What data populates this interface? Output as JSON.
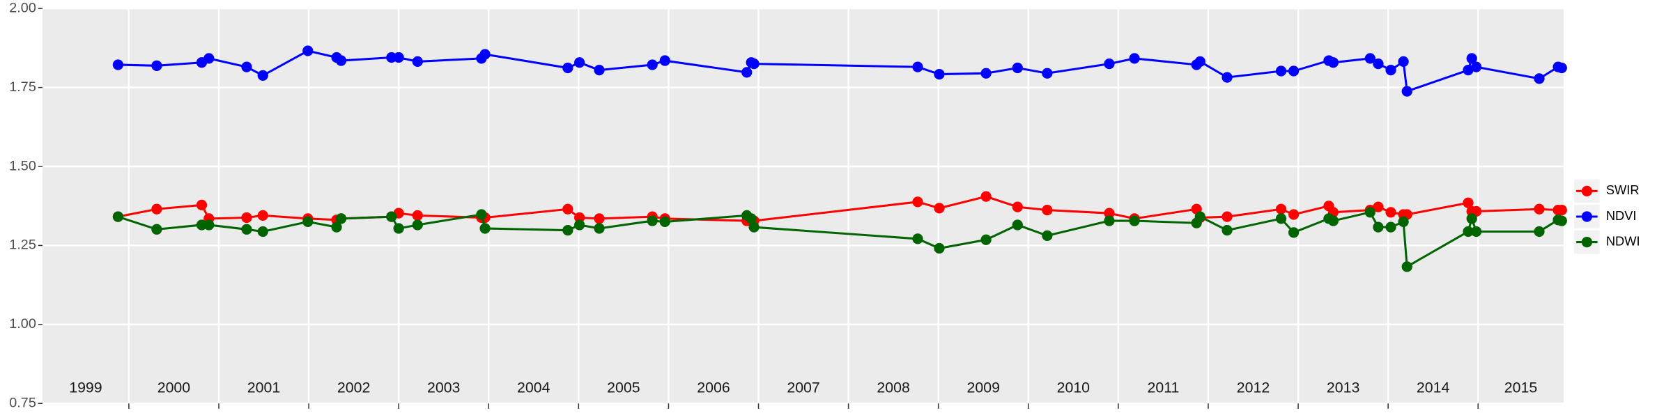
{
  "chart_data": {
    "type": "line",
    "x": [
      1999.88,
      2000.31,
      2000.81,
      2000.89,
      2001.31,
      2001.49,
      2001.99,
      2002.31,
      2002.36,
      2002.92,
      2003.0,
      2003.21,
      2003.92,
      2003.96,
      2004.88,
      2005.01,
      2005.23,
      2005.82,
      2005.96,
      2006.87,
      2006.92,
      2006.95,
      2008.77,
      2009.01,
      2009.53,
      2009.88,
      2010.21,
      2010.9,
      2011.18,
      2011.87,
      2011.91,
      2012.21,
      2012.81,
      2012.95,
      2013.34,
      2013.39,
      2013.8,
      2013.89,
      2014.03,
      2014.17,
      2014.21,
      2014.89,
      2014.93,
      2014.98,
      2015.68,
      2015.89,
      2015.93
    ],
    "series": [
      {
        "name": "SWIR",
        "color": "#ff0000",
        "values": [
          1.341,
          1.365,
          1.378,
          1.335,
          1.338,
          1.345,
          1.335,
          1.331,
          1.335,
          1.341,
          1.352,
          1.345,
          1.338,
          1.338,
          1.365,
          1.338,
          1.335,
          1.341,
          1.335,
          1.328,
          1.328,
          1.328,
          1.388,
          1.368,
          1.405,
          1.372,
          1.362,
          1.352,
          1.335,
          1.365,
          1.338,
          1.341,
          1.365,
          1.348,
          1.375,
          1.355,
          1.362,
          1.372,
          1.355,
          1.348,
          1.348,
          1.385,
          1.358,
          1.358,
          1.365,
          1.362,
          1.362
        ]
      },
      {
        "name": "NDVI",
        "color": "#0000ff",
        "values": [
          1.822,
          1.819,
          1.829,
          1.842,
          1.815,
          1.788,
          1.866,
          1.845,
          1.835,
          1.845,
          1.845,
          1.832,
          1.842,
          1.855,
          1.812,
          1.829,
          1.805,
          1.822,
          1.835,
          1.798,
          1.829,
          1.825,
          1.815,
          1.792,
          1.795,
          1.812,
          1.795,
          1.825,
          1.842,
          1.822,
          1.832,
          1.782,
          1.802,
          1.802,
          1.835,
          1.829,
          1.842,
          1.825,
          1.805,
          1.832,
          1.738,
          1.805,
          1.842,
          1.815,
          1.778,
          1.815,
          1.812
        ]
      },
      {
        "name": "NDWI",
        "color": "#006400",
        "values": [
          1.341,
          1.301,
          1.315,
          1.315,
          1.301,
          1.294,
          1.325,
          1.308,
          1.335,
          1.341,
          1.304,
          1.315,
          1.348,
          1.304,
          1.298,
          1.315,
          1.304,
          1.328,
          1.325,
          1.345,
          1.335,
          1.308,
          1.271,
          1.241,
          1.268,
          1.315,
          1.281,
          1.328,
          1.328,
          1.321,
          1.341,
          1.298,
          1.335,
          1.291,
          1.335,
          1.328,
          1.355,
          1.308,
          1.308,
          1.325,
          1.183,
          1.294,
          1.335,
          1.294,
          1.294,
          1.331,
          1.328
        ]
      }
    ],
    "xlim": [
      1999.04,
      2015.95
    ],
    "xticks": [
      2000,
      2001,
      2002,
      2003,
      2004,
      2005,
      2006,
      2007,
      2008,
      2009,
      2010,
      2011,
      2012,
      2013,
      2014,
      2015
    ],
    "year_labels": [
      "1999",
      "2000",
      "2001",
      "2002",
      "2003",
      "2004",
      "2005",
      "2006",
      "2007",
      "2008",
      "2009",
      "2010",
      "2011",
      "2012",
      "2013",
      "2014",
      "2015"
    ],
    "ylim": [
      0.75,
      2.0
    ],
    "yticks": [
      {
        "value": 0.75,
        "label": "0.75"
      },
      {
        "value": 1.0,
        "label": "1.00"
      },
      {
        "value": 1.25,
        "label": "1.25"
      },
      {
        "value": 1.5,
        "label": "1.50"
      },
      {
        "value": 1.75,
        "label": "1.75"
      },
      {
        "value": 2.0,
        "label": "2.00"
      }
    ],
    "grid": true,
    "legend": "right"
  }
}
